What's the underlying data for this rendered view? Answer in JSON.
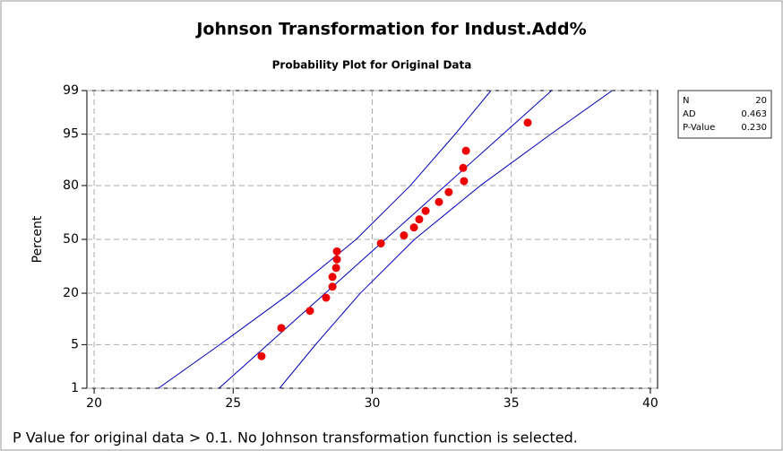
{
  "chart_data": {
    "type": "probability",
    "title": "Johnson Transformation for Indust.Add%",
    "subtitle": "Probability Plot for Original Data",
    "ylabel": "Percent",
    "note": "P Value for original data > 0.1. No Johnson transformation function is selected.",
    "xlim": [
      19.74,
      40.26
    ],
    "xticks": [
      20,
      25,
      30,
      35,
      40
    ],
    "ylim": [
      1,
      99
    ],
    "yticks": [
      1,
      5,
      20,
      50,
      80,
      95,
      99
    ],
    "yscale": "probit",
    "grid": true,
    "points": {
      "color": "#ee0000",
      "x": [
        26.02,
        26.73,
        27.76,
        28.34,
        28.57,
        28.57,
        28.7,
        28.73,
        28.73,
        30.31,
        31.14,
        31.5,
        31.69,
        31.92,
        32.4,
        32.75,
        33.3,
        33.27,
        33.37,
        35.59
      ],
      "y": [
        3.4,
        8.3,
        13.2,
        18.1,
        23.0,
        27.9,
        32.8,
        37.7,
        42.6,
        47.5,
        52.5,
        57.4,
        62.3,
        67.2,
        72.1,
        77.0,
        81.9,
        86.8,
        91.7,
        96.6
      ]
    },
    "lines": [
      {
        "color": "#0000bb",
        "y": [
          1,
          5,
          20,
          50,
          80,
          95,
          99
        ],
        "x": [
          24.49,
          26.24,
          28.31,
          30.47,
          32.63,
          34.7,
          36.45
        ]
      },
      {
        "color": "#0000bb",
        "y": [
          1,
          5,
          20,
          50,
          80,
          95,
          99
        ],
        "x": [
          22.31,
          24.52,
          27.05,
          29.42,
          31.37,
          32.98,
          34.27
        ]
      },
      {
        "color": "#0000bb",
        "y": [
          1,
          5,
          20,
          50,
          80,
          95,
          99
        ],
        "x": [
          26.67,
          27.96,
          29.57,
          31.52,
          33.89,
          36.42,
          38.63
        ]
      }
    ],
    "stats": [
      {
        "label": "N",
        "value": "20"
      },
      {
        "label": "AD",
        "value": "0.463"
      },
      {
        "label": "P-Value",
        "value": "0.230"
      }
    ]
  }
}
